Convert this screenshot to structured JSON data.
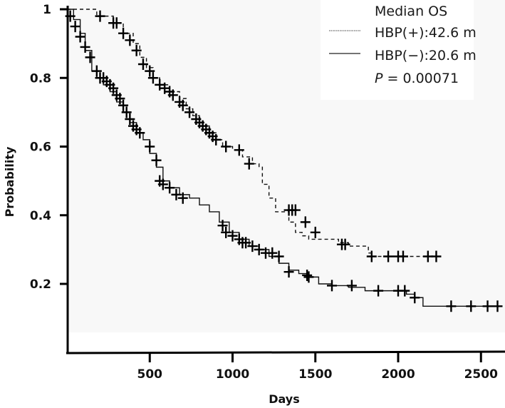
{
  "chart_data": {
    "type": "line",
    "subtype": "kaplan-meier",
    "title": "",
    "xlabel": "Days",
    "ylabel": "Probability",
    "xlim": [
      0,
      2700
    ],
    "ylim": [
      0.08,
      1.0
    ],
    "x_ticks": [
      500,
      1000,
      1500,
      2000,
      2500
    ],
    "x_tick_labels": [
      "500",
      "1000",
      "1500",
      "2000",
      "2500"
    ],
    "y_ticks": [
      0.2,
      0.4,
      0.6,
      0.8,
      1.0
    ],
    "y_tick_labels": [
      "0.2",
      "0.4",
      "0.6",
      "0.8",
      "1"
    ],
    "grid": false,
    "legend_position": "top-right",
    "legend": {
      "title": "Median OS",
      "entries": [
        {
          "label": "HBP(+):42.6 m",
          "style": "dashed"
        },
        {
          "label": "HBP(−):20.6 m",
          "style": "solid"
        }
      ],
      "p_label": "P",
      "p_value_text": " = 0.00071"
    },
    "series": [
      {
        "name": "HBP(+)",
        "median_os_months": 42.6,
        "style": "dashed",
        "x": [
          0,
          180,
          180,
          280,
          280,
          340,
          400,
          440,
          480,
          520,
          560,
          620,
          680,
          720,
          760,
          800,
          860,
          900,
          940,
          1000,
          1060,
          1120,
          1160,
          1180,
          1220,
          1260,
          1300,
          1340,
          1380,
          1420,
          1460,
          1560,
          1640,
          1700,
          1800,
          1820,
          1840,
          2250
        ],
        "y": [
          1.0,
          1.0,
          0.98,
          0.98,
          0.96,
          0.93,
          0.9,
          0.86,
          0.83,
          0.8,
          0.78,
          0.76,
          0.74,
          0.71,
          0.69,
          0.66,
          0.64,
          0.62,
          0.6,
          0.59,
          0.57,
          0.55,
          0.54,
          0.49,
          0.45,
          0.41,
          0.41,
          0.38,
          0.35,
          0.34,
          0.33,
          0.33,
          0.32,
          0.31,
          0.31,
          0.29,
          0.28,
          0.28
        ],
        "censor_x": [
          200,
          280,
          300,
          340,
          380,
          420,
          460,
          500,
          520,
          560,
          590,
          620,
          640,
          680,
          700,
          740,
          780,
          800,
          820,
          840,
          860,
          880,
          900,
          960,
          1040,
          1100,
          1340,
          1360,
          1380,
          1440,
          1500,
          1660,
          1680,
          1840,
          1940,
          2000,
          2030,
          2180,
          2230
        ],
        "censor_y": [
          0.98,
          0.96,
          0.96,
          0.93,
          0.91,
          0.88,
          0.84,
          0.82,
          0.8,
          0.78,
          0.77,
          0.76,
          0.75,
          0.73,
          0.72,
          0.7,
          0.68,
          0.67,
          0.66,
          0.65,
          0.64,
          0.63,
          0.62,
          0.6,
          0.59,
          0.55,
          0.415,
          0.415,
          0.415,
          0.38,
          0.35,
          0.315,
          0.315,
          0.28,
          0.28,
          0.28,
          0.28,
          0.28,
          0.28
        ]
      },
      {
        "name": "HBP(−)",
        "median_os_months": 20.6,
        "style": "solid",
        "x": [
          0,
          40,
          80,
          110,
          150,
          180,
          220,
          260,
          300,
          340,
          380,
          420,
          460,
          500,
          540,
          580,
          620,
          680,
          740,
          800,
          860,
          920,
          980,
          1040,
          1100,
          1160,
          1220,
          1280,
          1340,
          1400,
          1460,
          1520,
          1600,
          1700,
          1800,
          1900,
          2000,
          2050,
          2100,
          2150,
          2620
        ],
        "y": [
          1.0,
          0.97,
          0.93,
          0.88,
          0.82,
          0.8,
          0.78,
          0.76,
          0.73,
          0.7,
          0.67,
          0.64,
          0.62,
          0.58,
          0.54,
          0.5,
          0.48,
          0.46,
          0.45,
          0.43,
          0.41,
          0.38,
          0.35,
          0.33,
          0.31,
          0.3,
          0.28,
          0.26,
          0.24,
          0.23,
          0.22,
          0.2,
          0.195,
          0.19,
          0.18,
          0.18,
          0.18,
          0.17,
          0.16,
          0.135,
          0.135
        ],
        "censor_x": [
          20,
          50,
          80,
          110,
          140,
          180,
          200,
          220,
          240,
          260,
          280,
          300,
          320,
          340,
          360,
          380,
          400,
          420,
          440,
          500,
          540,
          560,
          580,
          620,
          660,
          700,
          940,
          960,
          1000,
          1040,
          1060,
          1080,
          1120,
          1160,
          1200,
          1240,
          1280,
          1340,
          1450,
          1460,
          1600,
          1720,
          1880,
          2000,
          2040,
          2100,
          2320,
          2440,
          2540,
          2600
        ],
        "censor_y": [
          0.98,
          0.95,
          0.92,
          0.89,
          0.86,
          0.82,
          0.8,
          0.8,
          0.79,
          0.78,
          0.77,
          0.75,
          0.74,
          0.72,
          0.7,
          0.68,
          0.66,
          0.65,
          0.64,
          0.6,
          0.56,
          0.5,
          0.49,
          0.48,
          0.46,
          0.45,
          0.37,
          0.35,
          0.34,
          0.33,
          0.32,
          0.32,
          0.31,
          0.3,
          0.29,
          0.29,
          0.28,
          0.235,
          0.225,
          0.22,
          0.195,
          0.195,
          0.18,
          0.18,
          0.18,
          0.16,
          0.135,
          0.135,
          0.135,
          0.135
        ]
      }
    ]
  }
}
